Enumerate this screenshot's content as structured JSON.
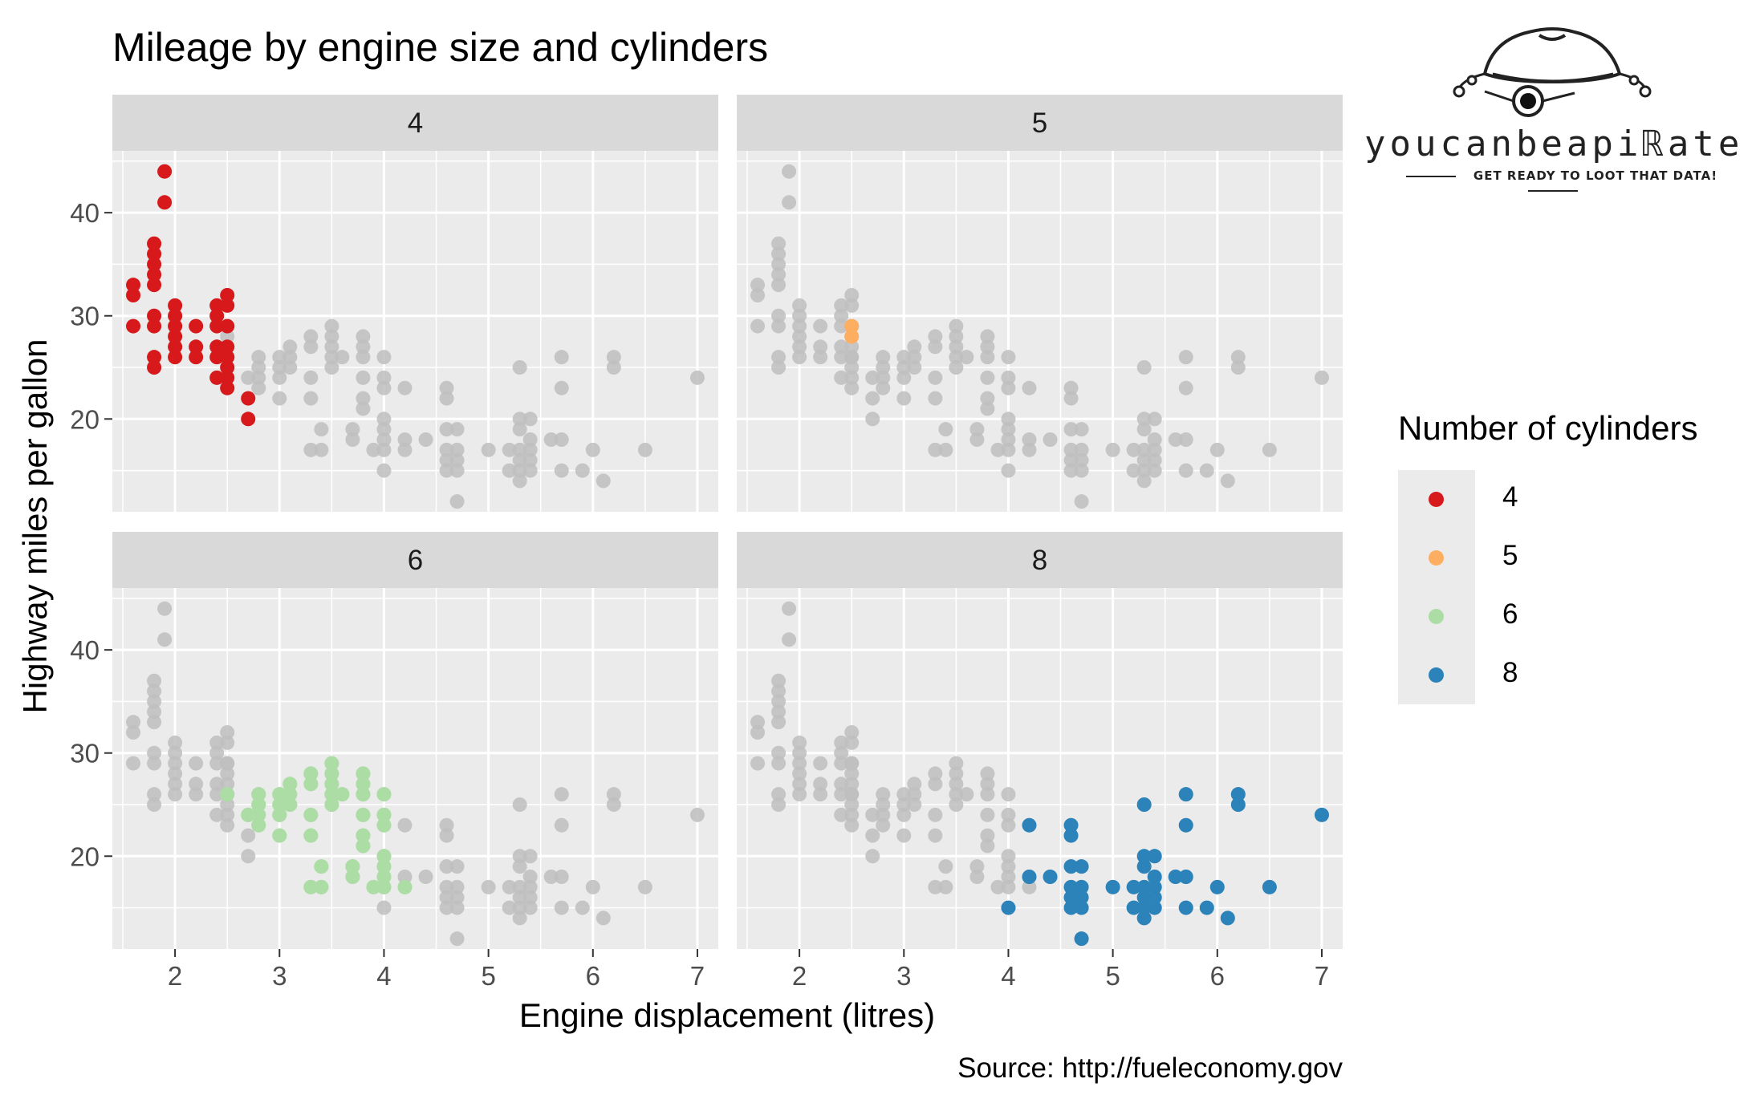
{
  "chart_data": {
    "type": "scatter",
    "title": "Mileage by engine size and cylinders",
    "xlabel": "Engine displacement (litres)",
    "ylabel": "Highway miles per gallon",
    "caption": "Source: http://fueleconomy.gov",
    "facet_by": "cylinders",
    "panels": [
      "4",
      "5",
      "6",
      "8"
    ],
    "xlim": [
      1.4,
      7.2
    ],
    "ylim": [
      11,
      46
    ],
    "xticks": [
      2,
      3,
      4,
      5,
      6,
      7
    ],
    "yticks": [
      20,
      30,
      40
    ],
    "background_color": "#bebebe",
    "grid": true,
    "legend": {
      "title": "Number of cylinders",
      "position": "right",
      "items": [
        {
          "label": "4",
          "color": "#d7191c"
        },
        {
          "label": "5",
          "color": "#fdae61"
        },
        {
          "label": "6",
          "color": "#abdda4"
        },
        {
          "label": "8",
          "color": "#2b83ba"
        }
      ]
    },
    "series": [
      {
        "name": "4",
        "color": "#d7191c",
        "points": [
          [
            1.6,
            33
          ],
          [
            1.6,
            32
          ],
          [
            1.6,
            29
          ],
          [
            1.8,
            37
          ],
          [
            1.8,
            36
          ],
          [
            1.8,
            35
          ],
          [
            1.8,
            34
          ],
          [
            1.8,
            33
          ],
          [
            1.8,
            30
          ],
          [
            1.8,
            29
          ],
          [
            1.8,
            26
          ],
          [
            1.8,
            25
          ],
          [
            1.9,
            44
          ],
          [
            1.9,
            41
          ],
          [
            2.0,
            31
          ],
          [
            2.0,
            30
          ],
          [
            2.0,
            29
          ],
          [
            2.0,
            28
          ],
          [
            2.0,
            27
          ],
          [
            2.0,
            26
          ],
          [
            2.2,
            29
          ],
          [
            2.2,
            27
          ],
          [
            2.2,
            26
          ],
          [
            2.4,
            31
          ],
          [
            2.4,
            30
          ],
          [
            2.4,
            29
          ],
          [
            2.4,
            27
          ],
          [
            2.4,
            26
          ],
          [
            2.4,
            24
          ],
          [
            2.5,
            32
          ],
          [
            2.5,
            31
          ],
          [
            2.5,
            29
          ],
          [
            2.5,
            27
          ],
          [
            2.5,
            26
          ],
          [
            2.5,
            25
          ],
          [
            2.5,
            24
          ],
          [
            2.5,
            23
          ],
          [
            2.7,
            22
          ],
          [
            2.7,
            20
          ]
        ]
      },
      {
        "name": "5",
        "color": "#fdae61",
        "points": [
          [
            2.5,
            29
          ],
          [
            2.5,
            28
          ]
        ]
      },
      {
        "name": "6",
        "color": "#abdda4",
        "points": [
          [
            2.5,
            26
          ],
          [
            2.7,
            24
          ],
          [
            2.8,
            26
          ],
          [
            2.8,
            25
          ],
          [
            2.8,
            24
          ],
          [
            2.8,
            23
          ],
          [
            3.0,
            26
          ],
          [
            3.0,
            25
          ],
          [
            3.0,
            24
          ],
          [
            3.0,
            22
          ],
          [
            3.1,
            27
          ],
          [
            3.1,
            26
          ],
          [
            3.1,
            25
          ],
          [
            3.3,
            28
          ],
          [
            3.3,
            27
          ],
          [
            3.3,
            24
          ],
          [
            3.3,
            22
          ],
          [
            3.3,
            17
          ],
          [
            3.4,
            19
          ],
          [
            3.4,
            17
          ],
          [
            3.5,
            29
          ],
          [
            3.5,
            28
          ],
          [
            3.5,
            27
          ],
          [
            3.5,
            26
          ],
          [
            3.5,
            25
          ],
          [
            3.6,
            26
          ],
          [
            3.7,
            19
          ],
          [
            3.7,
            18
          ],
          [
            3.8,
            28
          ],
          [
            3.8,
            27
          ],
          [
            3.8,
            26
          ],
          [
            3.8,
            24
          ],
          [
            3.8,
            22
          ],
          [
            3.8,
            21
          ],
          [
            3.9,
            17
          ],
          [
            4.0,
            26
          ],
          [
            4.0,
            24
          ],
          [
            4.0,
            23
          ],
          [
            4.0,
            20
          ],
          [
            4.0,
            19
          ],
          [
            4.0,
            18
          ],
          [
            4.0,
            17
          ],
          [
            4.2,
            17
          ]
        ]
      },
      {
        "name": "8",
        "color": "#2b83ba",
        "points": [
          [
            4.0,
            15
          ],
          [
            4.2,
            23
          ],
          [
            4.2,
            18
          ],
          [
            4.4,
            18
          ],
          [
            4.6,
            23
          ],
          [
            4.6,
            22
          ],
          [
            4.6,
            19
          ],
          [
            4.6,
            17
          ],
          [
            4.6,
            16
          ],
          [
            4.6,
            15
          ],
          [
            4.7,
            19
          ],
          [
            4.7,
            17
          ],
          [
            4.7,
            16
          ],
          [
            4.7,
            15
          ],
          [
            4.7,
            12
          ],
          [
            5.0,
            17
          ],
          [
            5.2,
            17
          ],
          [
            5.2,
            15
          ],
          [
            5.3,
            25
          ],
          [
            5.3,
            20
          ],
          [
            5.3,
            19
          ],
          [
            5.3,
            17
          ],
          [
            5.3,
            16
          ],
          [
            5.3,
            15
          ],
          [
            5.3,
            14
          ],
          [
            5.4,
            20
          ],
          [
            5.4,
            18
          ],
          [
            5.4,
            17
          ],
          [
            5.4,
            16
          ],
          [
            5.4,
            15
          ],
          [
            5.6,
            18
          ],
          [
            5.7,
            26
          ],
          [
            5.7,
            23
          ],
          [
            5.7,
            18
          ],
          [
            5.7,
            15
          ],
          [
            5.9,
            15
          ],
          [
            6.0,
            17
          ],
          [
            6.1,
            14
          ],
          [
            6.2,
            26
          ],
          [
            6.2,
            25
          ],
          [
            6.5,
            17
          ],
          [
            7.0,
            24
          ]
        ]
      }
    ]
  },
  "logo": {
    "wordmark": "youcanbeapiℝate",
    "tagline": "GET READY TO LOOT THAT DATA!"
  }
}
